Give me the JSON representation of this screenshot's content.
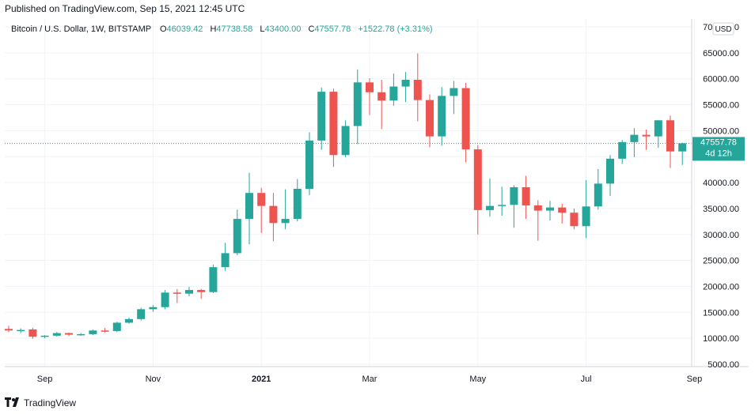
{
  "header": {
    "published": "Published on TradingView.com, Sep 15, 2021 12:45 UTC"
  },
  "legend": {
    "symbol": "Bitcoin / U.S. Dollar, 1W, BITSTAMP",
    "o_label": "O",
    "o": "46039.42",
    "h_label": "H",
    "h": "47738.58",
    "l_label": "L",
    "l": "43400.00",
    "c_label": "C",
    "c": "47557.78",
    "change": "+1522.78 (+3.31%)"
  },
  "price_badge": {
    "price": "47557.78",
    "countdown": "4d 12h"
  },
  "currency": "USD",
  "footer": {
    "brand": "TradingView"
  },
  "colors": {
    "up": "#26a69a",
    "down": "#ef5350",
    "grid": "#f0f3fa",
    "axis_text": "#131722"
  },
  "chart_data": {
    "type": "candlestick",
    "ylim": [
      3000,
      70000
    ],
    "y_ticks": [
      5000,
      10000,
      15000,
      20000,
      25000,
      30000,
      35000,
      40000,
      45000,
      50000,
      55000,
      60000,
      65000,
      70000
    ],
    "y_tick_labels": [
      "5000.00",
      "10000.00",
      "15000.00",
      "20000.00",
      "25000.00",
      "30000.00",
      "35000.00",
      "40000.00",
      "45000.00",
      "50000.00",
      "55000.00",
      "60000.00",
      "65000.00",
      "70000.00"
    ],
    "x_labels": [
      {
        "label": "Sep",
        "index": 3
      },
      {
        "label": "Nov",
        "index": 12
      },
      {
        "label": "2021",
        "index": 21
      },
      {
        "label": "Mar",
        "index": 30
      },
      {
        "label": "May",
        "index": 39
      },
      {
        "label": "Jul",
        "index": 48
      },
      {
        "label": "Sep",
        "index": 57
      }
    ],
    "last_price": 47557.78,
    "candles": [
      {
        "o": 11800,
        "h": 12400,
        "l": 11200,
        "c": 11500
      },
      {
        "o": 11500,
        "h": 11900,
        "l": 11000,
        "c": 11600
      },
      {
        "o": 11700,
        "h": 12000,
        "l": 9900,
        "c": 10300
      },
      {
        "o": 10300,
        "h": 10600,
        "l": 10000,
        "c": 10500
      },
      {
        "o": 10500,
        "h": 11200,
        "l": 10300,
        "c": 11000
      },
      {
        "o": 11000,
        "h": 11100,
        "l": 10400,
        "c": 10700
      },
      {
        "o": 10700,
        "h": 11000,
        "l": 10500,
        "c": 10800
      },
      {
        "o": 10800,
        "h": 11700,
        "l": 10600,
        "c": 11500
      },
      {
        "o": 11500,
        "h": 12000,
        "l": 11100,
        "c": 11400
      },
      {
        "o": 11400,
        "h": 13200,
        "l": 11200,
        "c": 13000
      },
      {
        "o": 13000,
        "h": 14000,
        "l": 12800,
        "c": 13700
      },
      {
        "o": 13700,
        "h": 15900,
        "l": 13400,
        "c": 15600
      },
      {
        "o": 15600,
        "h": 16400,
        "l": 15100,
        "c": 16000
      },
      {
        "o": 16000,
        "h": 19300,
        "l": 15600,
        "c": 18800
      },
      {
        "o": 18800,
        "h": 19500,
        "l": 16800,
        "c": 18600
      },
      {
        "o": 18600,
        "h": 19900,
        "l": 18100,
        "c": 19300
      },
      {
        "o": 19300,
        "h": 19500,
        "l": 17600,
        "c": 18900
      },
      {
        "o": 18900,
        "h": 24200,
        "l": 18700,
        "c": 23700
      },
      {
        "o": 23700,
        "h": 28400,
        "l": 23000,
        "c": 26400
      },
      {
        "o": 26400,
        "h": 34800,
        "l": 26000,
        "c": 33000
      },
      {
        "o": 33000,
        "h": 41900,
        "l": 28100,
        "c": 38000
      },
      {
        "o": 38000,
        "h": 39000,
        "l": 30300,
        "c": 35500
      },
      {
        "o": 35500,
        "h": 38000,
        "l": 28700,
        "c": 32200
      },
      {
        "o": 32200,
        "h": 38700,
        "l": 31000,
        "c": 33000
      },
      {
        "o": 33000,
        "h": 40700,
        "l": 32500,
        "c": 38800
      },
      {
        "o": 38800,
        "h": 49700,
        "l": 37600,
        "c": 48100
      },
      {
        "o": 48100,
        "h": 58300,
        "l": 46300,
        "c": 57500
      },
      {
        "o": 57500,
        "h": 58100,
        "l": 43000,
        "c": 45300
      },
      {
        "o": 45300,
        "h": 52000,
        "l": 44900,
        "c": 50900
      },
      {
        "o": 50900,
        "h": 61800,
        "l": 47400,
        "c": 59300
      },
      {
        "o": 59300,
        "h": 60100,
        "l": 53000,
        "c": 57400
      },
      {
        "o": 57400,
        "h": 59800,
        "l": 50300,
        "c": 55800
      },
      {
        "o": 55800,
        "h": 61000,
        "l": 54800,
        "c": 58500
      },
      {
        "o": 58500,
        "h": 61300,
        "l": 55500,
        "c": 59800
      },
      {
        "o": 59800,
        "h": 64900,
        "l": 51800,
        "c": 55900
      },
      {
        "o": 55900,
        "h": 57000,
        "l": 46800,
        "c": 48900
      },
      {
        "o": 48900,
        "h": 58400,
        "l": 47100,
        "c": 56700
      },
      {
        "o": 56700,
        "h": 59600,
        "l": 53200,
        "c": 58200
      },
      {
        "o": 58200,
        "h": 59200,
        "l": 43900,
        "c": 46400
      },
      {
        "o": 46400,
        "h": 47200,
        "l": 30000,
        "c": 34700
      },
      {
        "o": 34700,
        "h": 40800,
        "l": 33400,
        "c": 35500
      },
      {
        "o": 35500,
        "h": 39200,
        "l": 33600,
        "c": 35700
      },
      {
        "o": 35700,
        "h": 39500,
        "l": 31300,
        "c": 39100
      },
      {
        "o": 39100,
        "h": 41300,
        "l": 33000,
        "c": 35600
      },
      {
        "o": 35600,
        "h": 36600,
        "l": 28800,
        "c": 34600
      },
      {
        "o": 34600,
        "h": 36500,
        "l": 32700,
        "c": 35200
      },
      {
        "o": 35200,
        "h": 35900,
        "l": 32100,
        "c": 34200
      },
      {
        "o": 34200,
        "h": 35000,
        "l": 31000,
        "c": 31600
      },
      {
        "o": 31600,
        "h": 40500,
        "l": 29300,
        "c": 35400
      },
      {
        "o": 35400,
        "h": 42600,
        "l": 34800,
        "c": 39800
      },
      {
        "o": 39800,
        "h": 45300,
        "l": 37400,
        "c": 44600
      },
      {
        "o": 44600,
        "h": 48200,
        "l": 43600,
        "c": 47800
      },
      {
        "o": 47800,
        "h": 50500,
        "l": 44900,
        "c": 49200
      },
      {
        "o": 49200,
        "h": 50200,
        "l": 46300,
        "c": 48900
      },
      {
        "o": 48900,
        "h": 52000,
        "l": 46700,
        "c": 52000
      },
      {
        "o": 52000,
        "h": 52900,
        "l": 42800,
        "c": 46000
      },
      {
        "o": 46000,
        "h": 47700,
        "l": 43400,
        "c": 47557.78
      }
    ]
  }
}
